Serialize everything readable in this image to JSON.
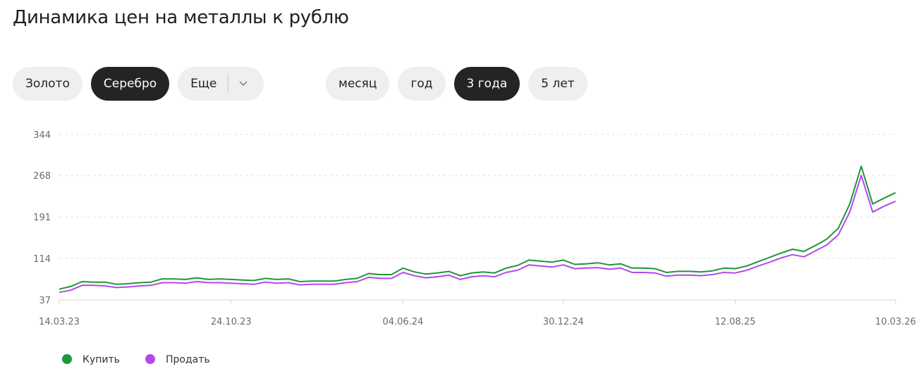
{
  "title": "Динамика цен на металлы к рублю",
  "metal_tabs": {
    "items": [
      "Золото",
      "Серебро",
      "Еще"
    ],
    "selected": 1
  },
  "period_tabs": {
    "items": [
      "месяц",
      "год",
      "3 года",
      "5 лет"
    ],
    "selected": 2
  },
  "chart_data": {
    "type": "line",
    "categories": [
      "14.03.23",
      null,
      null,
      null,
      null,
      null,
      null,
      null,
      null,
      null,
      null,
      null,
      null,
      null,
      null,
      "24.10.23",
      null,
      null,
      null,
      null,
      null,
      null,
      null,
      null,
      null,
      null,
      null,
      null,
      null,
      null,
      "04.06.24",
      null,
      null,
      null,
      null,
      null,
      null,
      null,
      null,
      null,
      null,
      null,
      null,
      null,
      "30.12.24",
      null,
      null,
      null,
      null,
      null,
      null,
      null,
      null,
      null,
      null,
      null,
      null,
      null,
      null,
      "12.08.25",
      null,
      null,
      null,
      null,
      null,
      null,
      null,
      null,
      null,
      null,
      null,
      null,
      null,
      "10.03.26"
    ],
    "series": [
      {
        "name": "Купить",
        "color": "#1f9638",
        "values": [
          57,
          62,
          71,
          70,
          70,
          66,
          67,
          69,
          70,
          76,
          76,
          75,
          78,
          75,
          76,
          75,
          74,
          73,
          77,
          75,
          76,
          71,
          72,
          72,
          72,
          75,
          77,
          86,
          84,
          84,
          96,
          89,
          85,
          87,
          90,
          82,
          87,
          89,
          87,
          96,
          101,
          111,
          109,
          107,
          111,
          103,
          104,
          106,
          102,
          104,
          96,
          96,
          95,
          88,
          90,
          90,
          89,
          91,
          96,
          95,
          100,
          108,
          116,
          124,
          131,
          127,
          138,
          150,
          170,
          215,
          285,
          215,
          226,
          236
        ]
      },
      {
        "name": "Продать",
        "color": "#b348ef",
        "values": [
          51,
          55,
          64,
          64,
          63,
          60,
          61,
          63,
          64,
          69,
          69,
          68,
          71,
          69,
          69,
          68,
          67,
          66,
          70,
          68,
          69,
          65,
          66,
          66,
          66,
          69,
          71,
          79,
          77,
          77,
          88,
          82,
          78,
          80,
          83,
          75,
          80,
          82,
          80,
          88,
          92,
          102,
          100,
          98,
          102,
          95,
          96,
          97,
          94,
          96,
          88,
          88,
          87,
          81,
          83,
          83,
          82,
          84,
          88,
          87,
          92,
          100,
          107,
          115,
          121,
          117,
          128,
          139,
          158,
          200,
          268,
          200,
          211,
          220
        ]
      }
    ],
    "ylim": [
      37,
      344
    ],
    "yticks": [
      37,
      114,
      191,
      268,
      344
    ],
    "grid": true,
    "legend": "bottom-left"
  }
}
